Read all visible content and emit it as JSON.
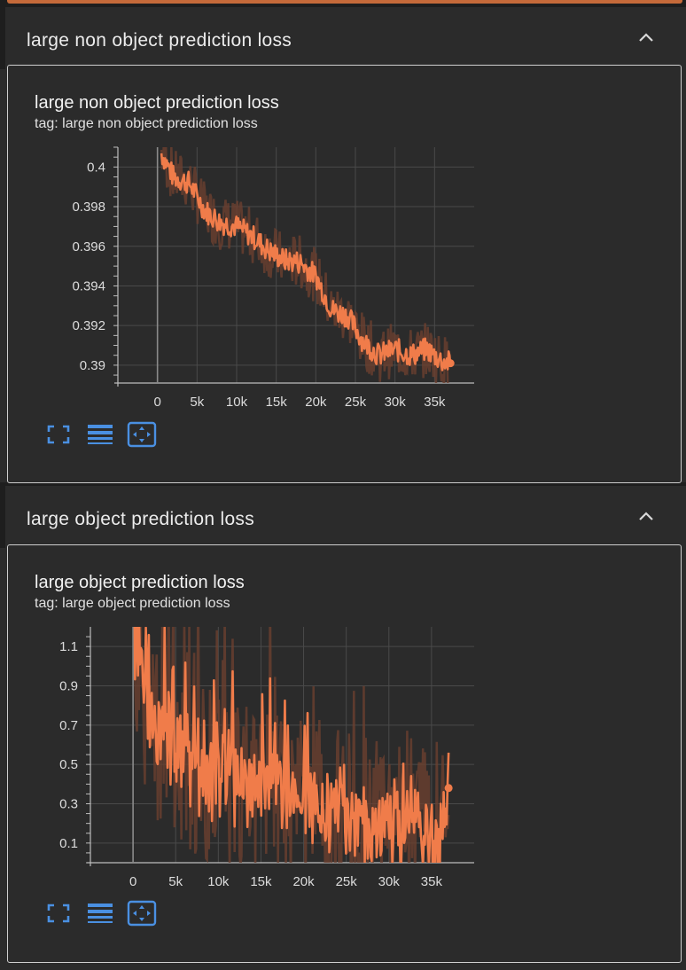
{
  "sections": [
    {
      "header": "large non object prediction loss",
      "card_title": "large non object prediction loss",
      "card_tag": "tag: large non object prediction loss"
    },
    {
      "header": "large object prediction loss",
      "card_title": "large object prediction loss",
      "card_tag": "tag: large object prediction loss"
    }
  ],
  "colors": {
    "series": "#f07c4a",
    "series_raw": "#6b4030",
    "accent_icon": "#4a90e2",
    "grid": "#4a4a4a"
  },
  "icons": [
    "expand-icon",
    "list-icon",
    "fit-domain-icon"
  ],
  "chart_data": [
    {
      "type": "line",
      "title": "large non object prediction loss",
      "xlabel": "",
      "ylabel": "",
      "xlim": [
        -5000,
        40000
      ],
      "ylim": [
        0.3891,
        0.401
      ],
      "xticks": [
        0,
        5000,
        10000,
        15000,
        20000,
        25000,
        30000,
        35000
      ],
      "xtick_labels": [
        "0",
        "5k",
        "10k",
        "15k",
        "20k",
        "25k",
        "30k",
        "35k"
      ],
      "yticks": [
        0.39,
        0.392,
        0.394,
        0.396,
        0.398,
        0.4
      ],
      "ytick_labels": [
        "0.39",
        "0.392",
        "0.394",
        "0.396",
        "0.398",
        "0.4"
      ],
      "grid": true,
      "legend": "none",
      "series": [
        {
          "x": [
            500,
            2000,
            4000,
            6000,
            8000,
            10000,
            12000,
            14000,
            16000,
            18000,
            20000,
            22000,
            24000,
            26000,
            28000,
            30000,
            32000,
            34000,
            36000,
            37000
          ],
          "values": [
            0.4007,
            0.3995,
            0.3992,
            0.3978,
            0.3972,
            0.397,
            0.3965,
            0.3958,
            0.3953,
            0.3952,
            0.3945,
            0.3928,
            0.3925,
            0.3912,
            0.3905,
            0.3908,
            0.3905,
            0.3908,
            0.3902,
            0.3901
          ]
        }
      ]
    },
    {
      "type": "line",
      "title": "large object prediction loss",
      "xlabel": "",
      "ylabel": "",
      "xlim": [
        -5000,
        40000
      ],
      "ylim": [
        0.0,
        1.2
      ],
      "xticks": [
        0,
        5000,
        10000,
        15000,
        20000,
        25000,
        30000,
        35000
      ],
      "xtick_labels": [
        "0",
        "5k",
        "10k",
        "15k",
        "20k",
        "25k",
        "30k",
        "35k"
      ],
      "yticks": [
        0.1,
        0.3,
        0.5,
        0.7,
        0.9,
        1.1
      ],
      "ytick_labels": [
        "0.1",
        "0.3",
        "0.5",
        "0.7",
        "0.9",
        "1.1"
      ],
      "grid": true,
      "legend": "none",
      "series": [
        {
          "x": [
            0,
            1000,
            2000,
            3000,
            4000,
            5000,
            6000,
            8000,
            10000,
            12000,
            14000,
            16000,
            18000,
            20000,
            22000,
            24000,
            26000,
            28000,
            30000,
            32000,
            34000,
            36000,
            37000
          ],
          "values": [
            1.2,
            0.9,
            0.75,
            0.65,
            0.55,
            0.6,
            0.5,
            0.45,
            0.42,
            0.4,
            0.38,
            0.35,
            0.33,
            0.3,
            0.28,
            0.22,
            0.2,
            0.18,
            0.17,
            0.16,
            0.15,
            0.14,
            0.38
          ]
        }
      ]
    }
  ]
}
